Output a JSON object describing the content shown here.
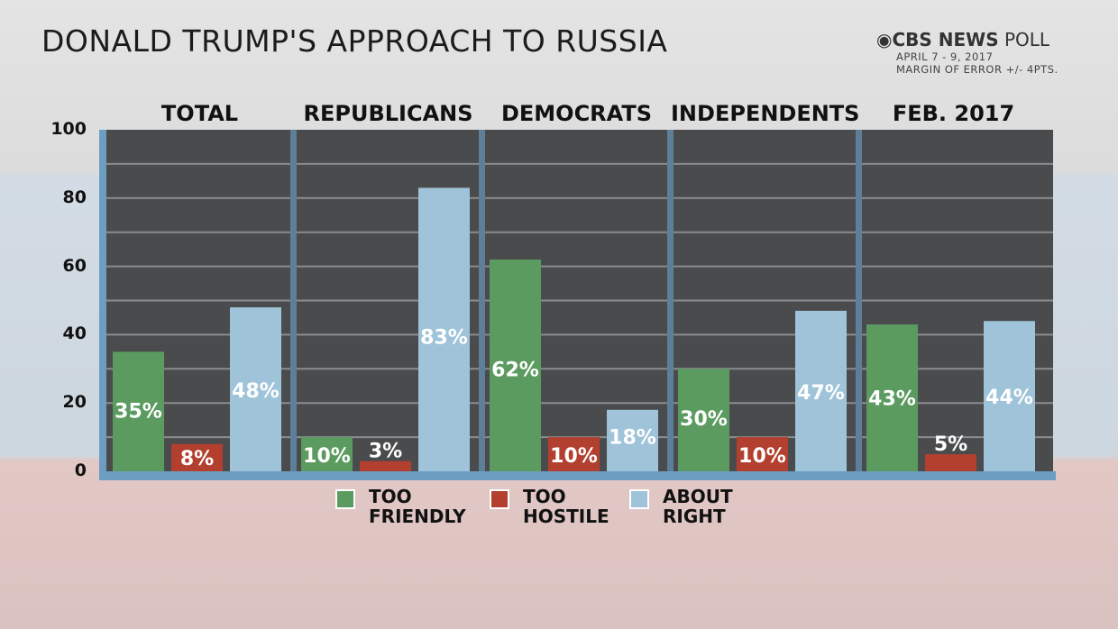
{
  "title": "DONALD TRUMP'S APPROACH TO RUSSIA",
  "source": {
    "brand": "CBS NEWS",
    "brand_suffix": "POLL",
    "dates": "APRIL 7 - 9, 2017",
    "margin": "MARGIN OF ERROR +/- 4PTS."
  },
  "chart_data": {
    "type": "bar",
    "title": "DONALD TRUMP'S APPROACH TO RUSSIA",
    "categories": [
      "TOTAL",
      "REPUBLICANS",
      "DEMOCRATS",
      "INDEPENDENTS",
      "FEB. 2017"
    ],
    "series": [
      {
        "name": "TOO FRIENDLY",
        "color": "#5b9b60",
        "values": [
          35,
          10,
          62,
          30,
          43
        ],
        "labels": [
          "35%",
          "10%",
          "62%",
          "30%",
          "43%"
        ]
      },
      {
        "name": "TOO HOSTILE",
        "color": "#b3402f",
        "values": [
          8,
          3,
          10,
          10,
          5
        ],
        "labels": [
          "8%",
          "3%",
          "10%",
          "10%",
          "5%"
        ]
      },
      {
        "name": "ABOUT RIGHT",
        "color": "#9fc3d8",
        "values": [
          48,
          83,
          18,
          47,
          44
        ],
        "labels": [
          "48%",
          "83%",
          "18%",
          "47%",
          "44%"
        ]
      }
    ],
    "ylim": [
      0,
      100
    ],
    "yticks": [
      "0",
      "20",
      "40",
      "60",
      "80",
      "100"
    ],
    "grid": true,
    "legend": "bottom",
    "legend_labels": [
      [
        "TOO",
        "FRIENDLY"
      ],
      [
        "TOO",
        "HOSTILE"
      ],
      [
        "ABOUT",
        "RIGHT"
      ]
    ]
  }
}
